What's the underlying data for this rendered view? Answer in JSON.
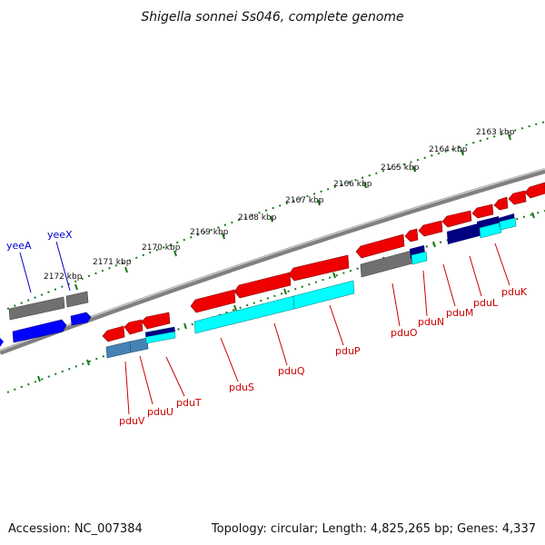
{
  "title": "Shigella sonnei Ss046, complete genome",
  "accession": "Accession: NC_007384",
  "topology": "Topology: circular; Length: 4,825,265 bp; Genes: 4,337",
  "ticks": [
    "2163 kbp",
    "2164 kbp",
    "2165 kbp",
    "2166 kbp",
    "2167 kbp",
    "2168 kbp",
    "2169 kbp",
    "2170 kbp",
    "2171 kbp",
    "2172 kbp"
  ],
  "colors": {
    "red": "#ff0000",
    "darkred": "#cc0000",
    "gray": "#707070",
    "blue": "#0000ff",
    "cyan": "#00ffff",
    "navy": "#000080",
    "steelblue": "#4682b4",
    "green": "#006400",
    "redLabel": "#cc0000",
    "blueLabel": "#0000cc"
  },
  "genes_lower": [
    {
      "name": "pduK",
      "color": "red"
    },
    {
      "name": "pduL",
      "color": "red"
    },
    {
      "name": "pduM",
      "color": "red"
    },
    {
      "name": "pduN",
      "color": "red"
    },
    {
      "name": "pduO",
      "color": "red"
    },
    {
      "name": "pduP",
      "color": "red"
    },
    {
      "name": "pduQ",
      "color": "red"
    },
    {
      "name": "pduS",
      "color": "red"
    },
    {
      "name": "pduT",
      "color": "red"
    },
    {
      "name": "pduU",
      "color": "red"
    },
    {
      "name": "pduV",
      "color": "red"
    }
  ],
  "genes_upper": [
    {
      "name": "yeeX",
      "color": "blue"
    },
    {
      "name": "yeeA",
      "color": "blue"
    }
  ]
}
